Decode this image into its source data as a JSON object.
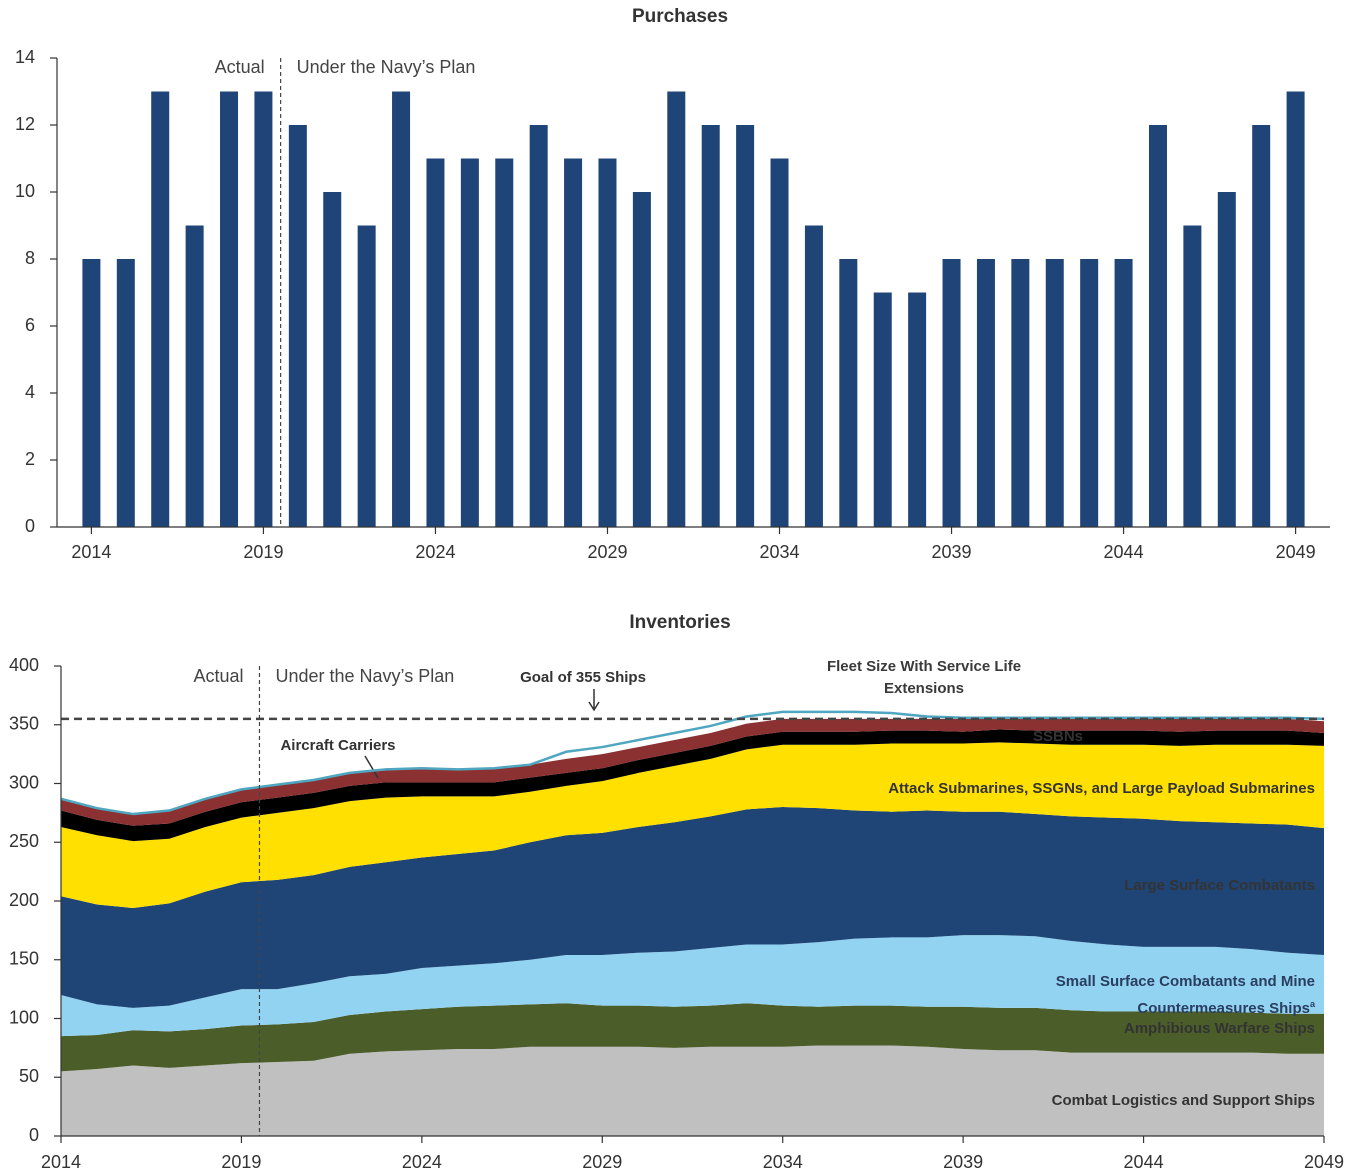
{
  "chart_data": [
    {
      "type": "bar",
      "title": "Purchases",
      "x": [
        2014,
        2015,
        2016,
        2017,
        2018,
        2019,
        2020,
        2021,
        2022,
        2023,
        2024,
        2025,
        2026,
        2027,
        2028,
        2029,
        2030,
        2031,
        2032,
        2033,
        2034,
        2035,
        2036,
        2037,
        2038,
        2039,
        2040,
        2041,
        2042,
        2043,
        2044,
        2045,
        2046,
        2047,
        2048,
        2049
      ],
      "values": [
        8,
        8,
        13,
        9,
        13,
        13,
        12,
        10,
        9,
        13,
        11,
        11,
        11,
        12,
        11,
        11,
        10,
        13,
        12,
        12,
        11,
        9,
        8,
        7,
        7,
        8,
        8,
        8,
        8,
        8,
        8,
        12,
        9,
        10,
        12,
        13
      ],
      "color": "#1f4477",
      "xlim": [
        2013,
        2050
      ],
      "xticks": [
        2014,
        2019,
        2024,
        2029,
        2034,
        2039,
        2044,
        2049
      ],
      "ylim": [
        0,
        14
      ],
      "yticks": [
        0,
        2,
        4,
        6,
        8,
        10,
        12,
        14
      ],
      "divider_x": 2019.5,
      "annotations": [
        "Actual",
        "Under the Navy’s Plan"
      ]
    },
    {
      "type": "area",
      "title": "Inventories",
      "stacked": true,
      "x": [
        2014,
        2015,
        2016,
        2017,
        2018,
        2019,
        2020,
        2021,
        2022,
        2023,
        2024,
        2025,
        2026,
        2027,
        2028,
        2029,
        2030,
        2031,
        2032,
        2033,
        2034,
        2035,
        2036,
        2037,
        2038,
        2039,
        2040,
        2041,
        2042,
        2043,
        2044,
        2045,
        2046,
        2047,
        2048,
        2049
      ],
      "series": [
        {
          "name": "Combat Logistics and Support Ships",
          "color": "#c0c0c0",
          "label_color": "#3a3a3a",
          "values": [
            55,
            57,
            60,
            58,
            60,
            62,
            63,
            64,
            70,
            72,
            73,
            74,
            74,
            76,
            76,
            76,
            76,
            75,
            76,
            76,
            76,
            77,
            77,
            77,
            76,
            74,
            73,
            73,
            71,
            71,
            71,
            71,
            71,
            71,
            70,
            70
          ]
        },
        {
          "name": "Amphibious Warfare Ships",
          "color": "#4b5e2a",
          "label_color": "#ffffff",
          "values": [
            30,
            29,
            30,
            31,
            31,
            32,
            32,
            33,
            33,
            34,
            35,
            36,
            37,
            36,
            37,
            35,
            35,
            35,
            35,
            37,
            35,
            33,
            34,
            34,
            34,
            36,
            36,
            36,
            36,
            35,
            35,
            35,
            35,
            34,
            34,
            34
          ]
        },
        {
          "name": "Small Surface Combatants and Mine Countermeasures Ships",
          "footnote": "a",
          "color": "#93d3f2",
          "label_color": "#2a3f5f",
          "values": [
            35,
            26,
            19,
            22,
            27,
            31,
            30,
            33,
            33,
            32,
            35,
            35,
            36,
            38,
            41,
            43,
            45,
            47,
            49,
            50,
            52,
            55,
            57,
            58,
            59,
            61,
            62,
            61,
            59,
            57,
            55,
            55,
            55,
            54,
            52,
            50
          ]
        },
        {
          "name": "Large Surface Combatants",
          "color": "#1f4577",
          "label_color": "#ffffff",
          "values": [
            84,
            85,
            85,
            87,
            90,
            91,
            93,
            92,
            93,
            95,
            94,
            95,
            96,
            100,
            102,
            104,
            107,
            110,
            112,
            115,
            117,
            114,
            109,
            107,
            108,
            105,
            105,
            104,
            106,
            108,
            109,
            107,
            106,
            107,
            109,
            108
          ]
        },
        {
          "name": "Attack Submarines, SSGNs, and Large Payload Submarines",
          "color": "#ffe000",
          "label_color": "#3a3a3a",
          "values": [
            59,
            59,
            57,
            55,
            55,
            55,
            57,
            57,
            56,
            55,
            52,
            49,
            46,
            43,
            42,
            44,
            46,
            48,
            49,
            51,
            53,
            54,
            56,
            58,
            57,
            58,
            59,
            60,
            61,
            62,
            63,
            64,
            66,
            67,
            68,
            70
          ]
        },
        {
          "name": "SSBNs",
          "color": "#000000",
          "label_color": "#ffffff",
          "values": [
            14,
            13,
            13,
            13,
            13,
            13,
            13,
            13,
            13,
            13,
            12,
            12,
            12,
            12,
            11,
            11,
            11,
            11,
            11,
            11,
            11,
            11,
            11,
            11,
            11,
            10,
            11,
            11,
            12,
            12,
            12,
            12,
            12,
            12,
            12,
            11
          ]
        },
        {
          "name": "Aircraft Carriers",
          "color": "#8b3132",
          "label_color": "#3a3a3a",
          "values": [
            10,
            10,
            10,
            11,
            11,
            11,
            11,
            11,
            11,
            11,
            12,
            11,
            12,
            11,
            12,
            12,
            11,
            11,
            11,
            11,
            11,
            11,
            11,
            10,
            10,
            11,
            9,
            10,
            10,
            10,
            10,
            11,
            10,
            10,
            10,
            10
          ]
        },
        {
          "name": "Fleet Size With Service Life Extensions",
          "type": "line",
          "color": "#4fa6c0",
          "label_color": "#3a3a3a",
          "values": [
            287,
            279,
            274,
            277,
            287,
            295,
            299,
            303,
            309,
            312,
            313,
            312,
            313,
            316,
            327,
            331,
            337,
            343,
            349,
            357,
            361,
            361,
            361,
            360,
            357,
            356,
            356,
            356,
            356,
            356,
            356,
            356,
            356,
            356,
            356,
            355
          ]
        }
      ],
      "reference_line": {
        "value": 355,
        "label": "Goal of 355 Ships"
      },
      "xlim": [
        2014,
        2049
      ],
      "xticks": [
        2014,
        2019,
        2024,
        2029,
        2034,
        2039,
        2044,
        2049
      ],
      "ylim": [
        0,
        400
      ],
      "yticks": [
        0,
        50,
        100,
        150,
        200,
        250,
        300,
        350,
        400
      ],
      "divider_x": 2019.5,
      "annotations": [
        "Actual",
        "Under the Navy’s Plan"
      ]
    }
  ]
}
